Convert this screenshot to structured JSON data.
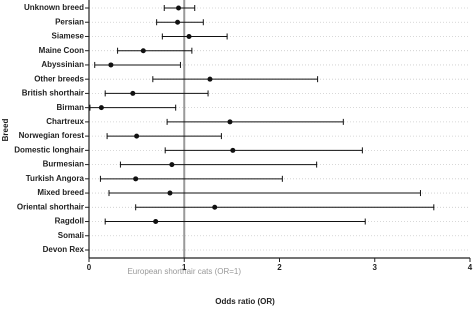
{
  "chart_data": {
    "type": "forest",
    "x_label": "Odds ratio (OR)",
    "y_label": "Breed",
    "categories": [
      "Unknown breed",
      "Persian",
      "Siamese",
      "Maine Coon",
      "Abyssinian",
      "Other breeds",
      "British shorthair",
      "Birman",
      "Chartreux",
      "Norwegian forest",
      "Domestic longhair",
      "Burmesian",
      "Turkish Angora",
      "Mixed breed",
      "Oriental shorthair",
      "Ragdoll",
      "Somali",
      "Devon Rex"
    ],
    "values": [
      0.94,
      0.93,
      1.05,
      0.57,
      0.23,
      1.27,
      0.46,
      0.13,
      1.48,
      0.5,
      1.51,
      0.87,
      0.49,
      0.85,
      1.32,
      0.7,
      null,
      null
    ],
    "lower": [
      0.79,
      0.71,
      0.77,
      0.3,
      0.06,
      0.67,
      0.17,
      0.01,
      0.82,
      0.19,
      0.8,
      0.33,
      0.12,
      0.21,
      0.49,
      0.17,
      null,
      null
    ],
    "upper": [
      1.11,
      1.2,
      1.45,
      1.08,
      0.96,
      2.4,
      1.25,
      0.91,
      2.67,
      1.39,
      2.87,
      2.39,
      2.03,
      3.48,
      3.62,
      2.9,
      null,
      null
    ],
    "color": "#111111",
    "xlim": [
      0,
      4
    ],
    "xticks": [
      0,
      1,
      2,
      3,
      4
    ],
    "grid": true,
    "reference_line": {
      "value": 1,
      "label": "European shorthair cats (OR=1)",
      "color": "#999999"
    }
  }
}
